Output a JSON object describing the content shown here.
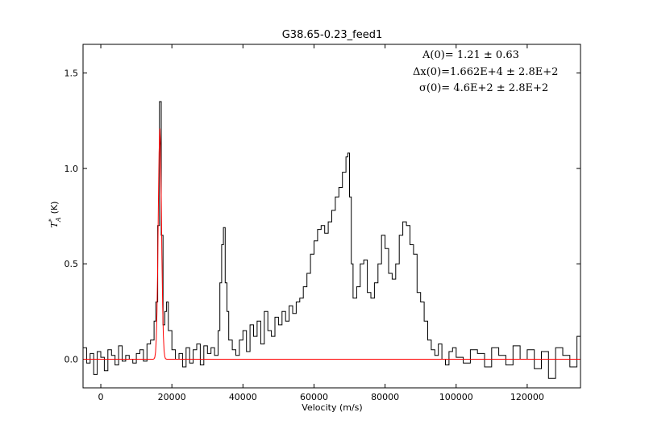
{
  "chart_data": {
    "type": "line",
    "title": "G38.65-0.23_feed1",
    "xlabel": "Velocity (m/s)",
    "ylabel_main": "T",
    "ylabel_sup": "*",
    "ylabel_sub": "A",
    "ylabel_unit": "(K)",
    "xlim": [
      -5000,
      135000
    ],
    "ylim": [
      -0.15,
      1.65
    ],
    "x_ticks": [
      0,
      20000,
      40000,
      60000,
      80000,
      100000,
      120000
    ],
    "x_tick_labels": [
      "0",
      "20000",
      "40000",
      "60000",
      "80000",
      "100000",
      "120000"
    ],
    "y_ticks": [
      0.0,
      0.5,
      1.0,
      1.5
    ],
    "y_tick_labels": [
      "0.0",
      "0.5",
      "1.0",
      "1.5"
    ],
    "grid": false,
    "annotations": [
      "A(0)=    1.21  ±     0.63",
      "Δx(0)=1.662E+4  ±    2.8E+2",
      "σ(0)=  4.6E+2  ±    2.8E+2"
    ],
    "series": [
      {
        "color": "#000000",
        "style": "steps",
        "x": [
          -5000,
          -4000,
          -3000,
          -2000,
          -1000,
          0,
          1000,
          2000,
          3000,
          4000,
          5000,
          6000,
          7000,
          8000,
          9000,
          10000,
          11000,
          12000,
          13000,
          14000,
          15000,
          15500,
          16000,
          16500,
          17000,
          17500,
          18000,
          18500,
          19000,
          20000,
          21000,
          22000,
          23000,
          24000,
          25000,
          26000,
          27000,
          28000,
          29000,
          30000,
          31000,
          32000,
          33000,
          33500,
          34000,
          34500,
          35000,
          35500,
          36000,
          37000,
          38000,
          39000,
          40000,
          41000,
          42000,
          43000,
          44000,
          45000,
          46000,
          47000,
          48000,
          49000,
          50000,
          51000,
          52000,
          53000,
          54000,
          55000,
          56000,
          57000,
          58000,
          59000,
          60000,
          61000,
          62000,
          63000,
          64000,
          65000,
          66000,
          67000,
          68000,
          69000,
          69500,
          70000,
          70500,
          71000,
          72000,
          73000,
          74000,
          75000,
          76000,
          77000,
          78000,
          79000,
          80000,
          81000,
          82000,
          83000,
          84000,
          85000,
          86000,
          87000,
          88000,
          89000,
          90000,
          91000,
          92000,
          93000,
          94000,
          95000,
          96000,
          97000,
          98000,
          99000,
          100000,
          102000,
          104000,
          106000,
          108000,
          110000,
          112000,
          114000,
          116000,
          118000,
          120000,
          122000,
          124000,
          126000,
          128000,
          130000,
          132000,
          134000,
          135000
        ],
        "y": [
          0.06,
          -0.02,
          0.03,
          -0.08,
          0.04,
          0.01,
          -0.06,
          0.05,
          0.02,
          -0.03,
          0.07,
          -0.01,
          0.02,
          0.0,
          -0.02,
          0.03,
          0.05,
          -0.01,
          0.08,
          0.1,
          0.2,
          0.3,
          0.7,
          1.35,
          0.65,
          0.18,
          0.25,
          0.3,
          0.15,
          0.05,
          0.0,
          0.03,
          -0.04,
          0.06,
          -0.02,
          0.05,
          0.08,
          -0.03,
          0.07,
          0.03,
          0.06,
          0.02,
          0.15,
          0.4,
          0.6,
          0.69,
          0.4,
          0.25,
          0.1,
          0.05,
          0.02,
          0.1,
          0.15,
          0.04,
          0.18,
          0.12,
          0.2,
          0.08,
          0.25,
          0.15,
          0.12,
          0.22,
          0.18,
          0.25,
          0.2,
          0.28,
          0.24,
          0.3,
          0.32,
          0.38,
          0.45,
          0.55,
          0.62,
          0.68,
          0.7,
          0.66,
          0.72,
          0.78,
          0.85,
          0.9,
          0.98,
          1.06,
          1.08,
          0.85,
          0.5,
          0.32,
          0.38,
          0.5,
          0.52,
          0.35,
          0.32,
          0.4,
          0.5,
          0.65,
          0.58,
          0.45,
          0.42,
          0.5,
          0.65,
          0.72,
          0.7,
          0.6,
          0.55,
          0.35,
          0.3,
          0.2,
          0.1,
          0.05,
          0.02,
          0.08,
          0.0,
          -0.03,
          0.04,
          0.06,
          0.01,
          -0.02,
          0.05,
          0.03,
          -0.04,
          0.06,
          0.02,
          -0.03,
          0.07,
          0.0,
          0.05,
          -0.05,
          0.04,
          -0.1,
          0.06,
          0.02,
          -0.04,
          0.12,
          -0.02
        ]
      },
      {
        "color": "#ff0000",
        "style": "line",
        "gaussian": {
          "A": 1.21,
          "mu": 16620,
          "sigma": 460
        }
      }
    ]
  }
}
